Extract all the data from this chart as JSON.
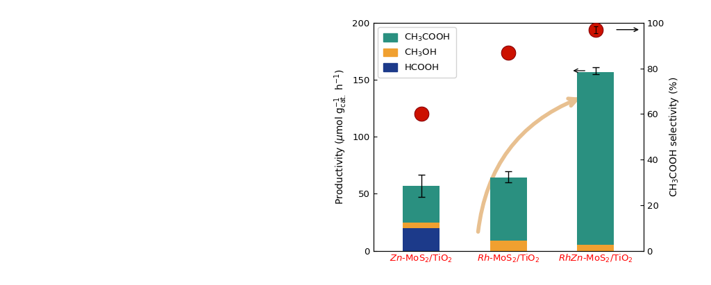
{
  "categories": [
    "Zn-MoS₂/TiO₂",
    "Rh-MoS₂/TiO₂",
    "RhZn-MoS₂/TiO₂"
  ],
  "bar_ch3cooh": [
    32,
    55,
    152
  ],
  "bar_ch3oh": [
    5,
    9,
    5
  ],
  "bar_hcooh": [
    20,
    0,
    0
  ],
  "total_bar_err": [
    10,
    5,
    3
  ],
  "total_bar_val": [
    57,
    65,
    158
  ],
  "selectivity": [
    60,
    87,
    97
  ],
  "colors_ch3cooh": "#2a9080",
  "colors_ch3oh": "#f0a030",
  "colors_hcooh": "#1c3a8a",
  "ylim_left": [
    0,
    200
  ],
  "ylim_right": [
    0,
    100
  ],
  "yticks_left": [
    0,
    50,
    100,
    150,
    200
  ],
  "yticks_right": [
    0,
    20,
    40,
    60,
    80,
    100
  ],
  "background_color": "#ffffff",
  "selectivity_dot_color": "#cc1100",
  "arrow_color": "#e8c090"
}
